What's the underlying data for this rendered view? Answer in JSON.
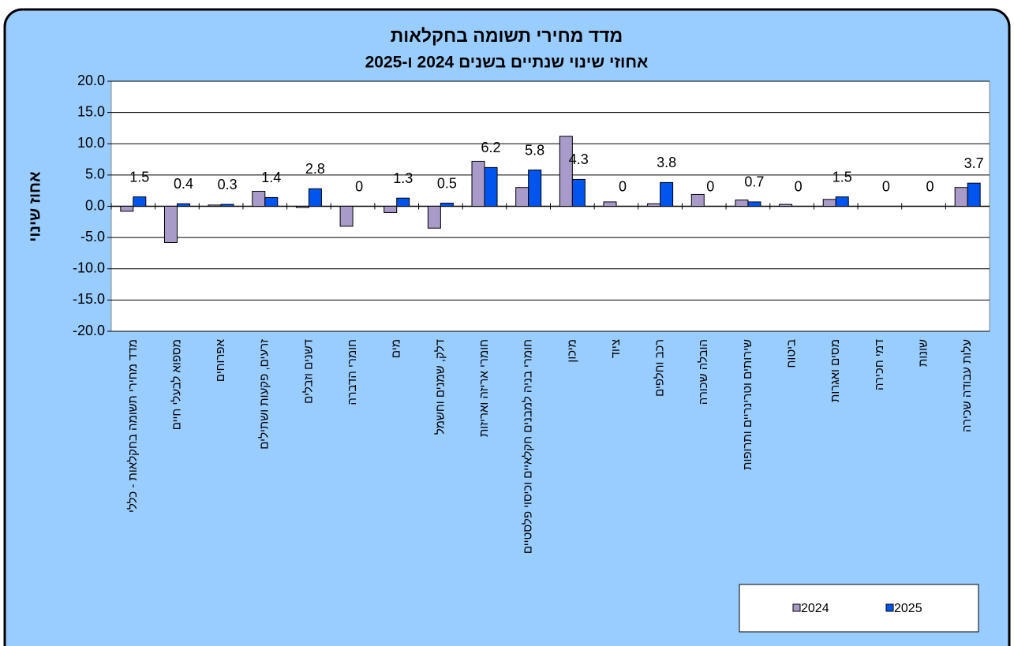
{
  "chart_data": {
    "type": "bar",
    "title": "מדד מחירי תשומה בחקלאות",
    "subtitle": "אחוזי שינוי שנתיים בשנים 2024 ו-2025",
    "y_label": "אחוז שינוי",
    "categories": [
      "מדד מחירי תשומה בחקלאות - כללי",
      "מספוא לבעלי חיים",
      "אפרוחים",
      "זרעים, פקעות ושתילים",
      "דשנים וזבלים",
      "חומרי הדברה",
      "מים",
      "דלק, שמנים וחשמל",
      "חומרי אריזה ואריזות",
      "חומרי בניה למבנים חקלאיים וכיסוי פלסטיים",
      "מיכון",
      "ציוד",
      "רכב וחלפים",
      "הובלה שכורה",
      "שירותים וטרינריים ותרופות",
      "ביטוח",
      "מסים ואגרות",
      "דמי חכירה",
      "שונות",
      "עלות עבודה שכירה"
    ],
    "series": [
      {
        "name": "2024",
        "color": "#a99bc9",
        "values": [
          -0.8,
          -5.8,
          0.2,
          2.4,
          -0.2,
          -3.2,
          -1.0,
          -3.5,
          7.2,
          3.0,
          11.2,
          0.7,
          0.4,
          1.9,
          1.0,
          0.3,
          1.1,
          0,
          0,
          3.0
        ]
      },
      {
        "name": "2025",
        "color": "#0055ee",
        "values": [
          1.5,
          0.4,
          0.3,
          1.4,
          2.8,
          0,
          1.3,
          0.5,
          6.2,
          5.8,
          4.3,
          0,
          3.8,
          0,
          0.7,
          0,
          1.5,
          0,
          0,
          3.7
        ],
        "data_labels": true
      }
    ],
    "ylim": [
      -20,
      20
    ],
    "yticks": [
      {
        "value": -20,
        "label": "-20.0"
      },
      {
        "value": -15,
        "label": "-15.0"
      },
      {
        "value": -10,
        "label": "-10.0"
      },
      {
        "value": -5,
        "label": "-5.0"
      },
      {
        "value": 0,
        "label": "0.0"
      },
      {
        "value": 5,
        "label": "5.0"
      },
      {
        "value": 10,
        "label": "10.0"
      },
      {
        "value": 15,
        "label": "15.0"
      },
      {
        "value": 20,
        "label": "20.0"
      }
    ],
    "grid": true,
    "legend": "bottom-right"
  }
}
